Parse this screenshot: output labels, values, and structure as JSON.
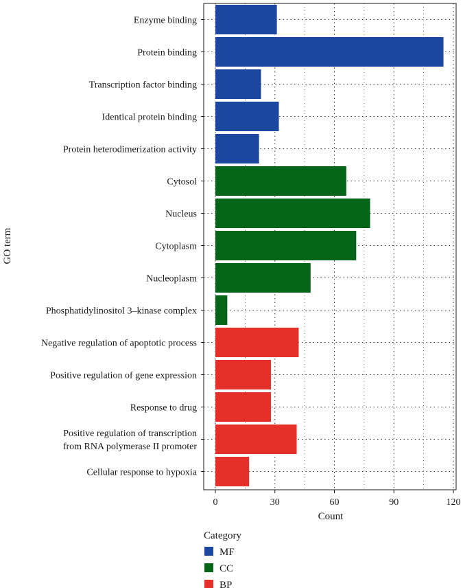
{
  "chart_data": {
    "type": "bar",
    "orientation": "horizontal",
    "xlabel": "Count",
    "ylabel": "GO term",
    "xlim": [
      0,
      120
    ],
    "xticks": [
      0,
      30,
      60,
      90,
      120
    ],
    "grid": true,
    "legend": {
      "title": "Category",
      "placement": "bottom-left",
      "entries": [
        {
          "name": "MF",
          "color": "#1c47a0"
        },
        {
          "name": "CC",
          "color": "#046418"
        },
        {
          "name": "BP",
          "color": "#e5302a"
        }
      ]
    },
    "categories": [
      [
        "Enzyme binding"
      ],
      [
        "Protein binding"
      ],
      [
        "Transcription factor binding"
      ],
      [
        "Identical protein binding"
      ],
      [
        "Protein heterodimerization activity"
      ],
      [
        "Cytosol"
      ],
      [
        "Nucleus"
      ],
      [
        "Cytoplasm"
      ],
      [
        "Nucleoplasm"
      ],
      [
        "Phosphatidylinositol 3–kinase complex"
      ],
      [
        "Negative regulation of apoptotic process"
      ],
      [
        "Positive regulation of gene expression"
      ],
      [
        "Response to drug"
      ],
      [
        "Positive regulation of transcription",
        "from RNA polymerase II promoter"
      ],
      [
        "Cellular response to hypoxia"
      ]
    ],
    "values": [
      31,
      115,
      23,
      32,
      22,
      66,
      78,
      71,
      48,
      6,
      42,
      28,
      28,
      41,
      17
    ],
    "category_group": [
      "MF",
      "MF",
      "MF",
      "MF",
      "MF",
      "CC",
      "CC",
      "CC",
      "CC",
      "CC",
      "BP",
      "BP",
      "BP",
      "BP",
      "BP"
    ]
  }
}
